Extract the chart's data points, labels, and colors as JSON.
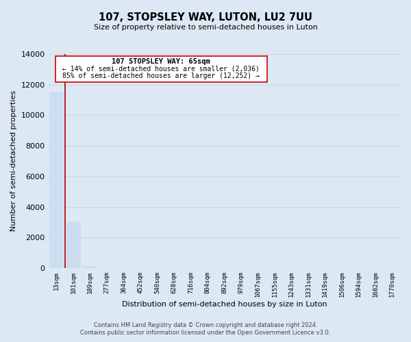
{
  "title": "107, STOPSLEY WAY, LUTON, LU2 7UU",
  "subtitle": "Size of property relative to semi-detached houses in Luton",
  "xlabel": "Distribution of semi-detached houses by size in Luton",
  "ylabel": "Number of semi-detached properties",
  "categories": [
    "13sqm",
    "101sqm",
    "189sqm",
    "277sqm",
    "364sqm",
    "452sqm",
    "540sqm",
    "628sqm",
    "716sqm",
    "804sqm",
    "892sqm",
    "979sqm",
    "1067sqm",
    "1155sqm",
    "1243sqm",
    "1331sqm",
    "1419sqm",
    "1506sqm",
    "1594sqm",
    "1682sqm",
    "1770sqm"
  ],
  "values": [
    11500,
    3050,
    130,
    0,
    0,
    0,
    0,
    0,
    0,
    0,
    0,
    0,
    0,
    0,
    0,
    0,
    0,
    0,
    0,
    0,
    0
  ],
  "bar_color": "#ccddf0",
  "annotation_title": "107 STOPSLEY WAY: 65sqm",
  "annotation_line1": "← 14% of semi-detached houses are smaller (2,036)",
  "annotation_line2": "85% of semi-detached houses are larger (12,252) →",
  "annotation_box_color": "#ffffff",
  "annotation_box_edge": "#cc0000",
  "ylim": [
    0,
    14000
  ],
  "yticks": [
    0,
    2000,
    4000,
    6000,
    8000,
    10000,
    12000,
    14000
  ],
  "grid_color": "#c8d8e8",
  "footer_line1": "Contains HM Land Registry data © Crown copyright and database right 2024.",
  "footer_line2": "Contains public sector information licensed under the Open Government Licence v3.0.",
  "marker_line_color": "#aa0000",
  "background_color": "#dce8f4"
}
